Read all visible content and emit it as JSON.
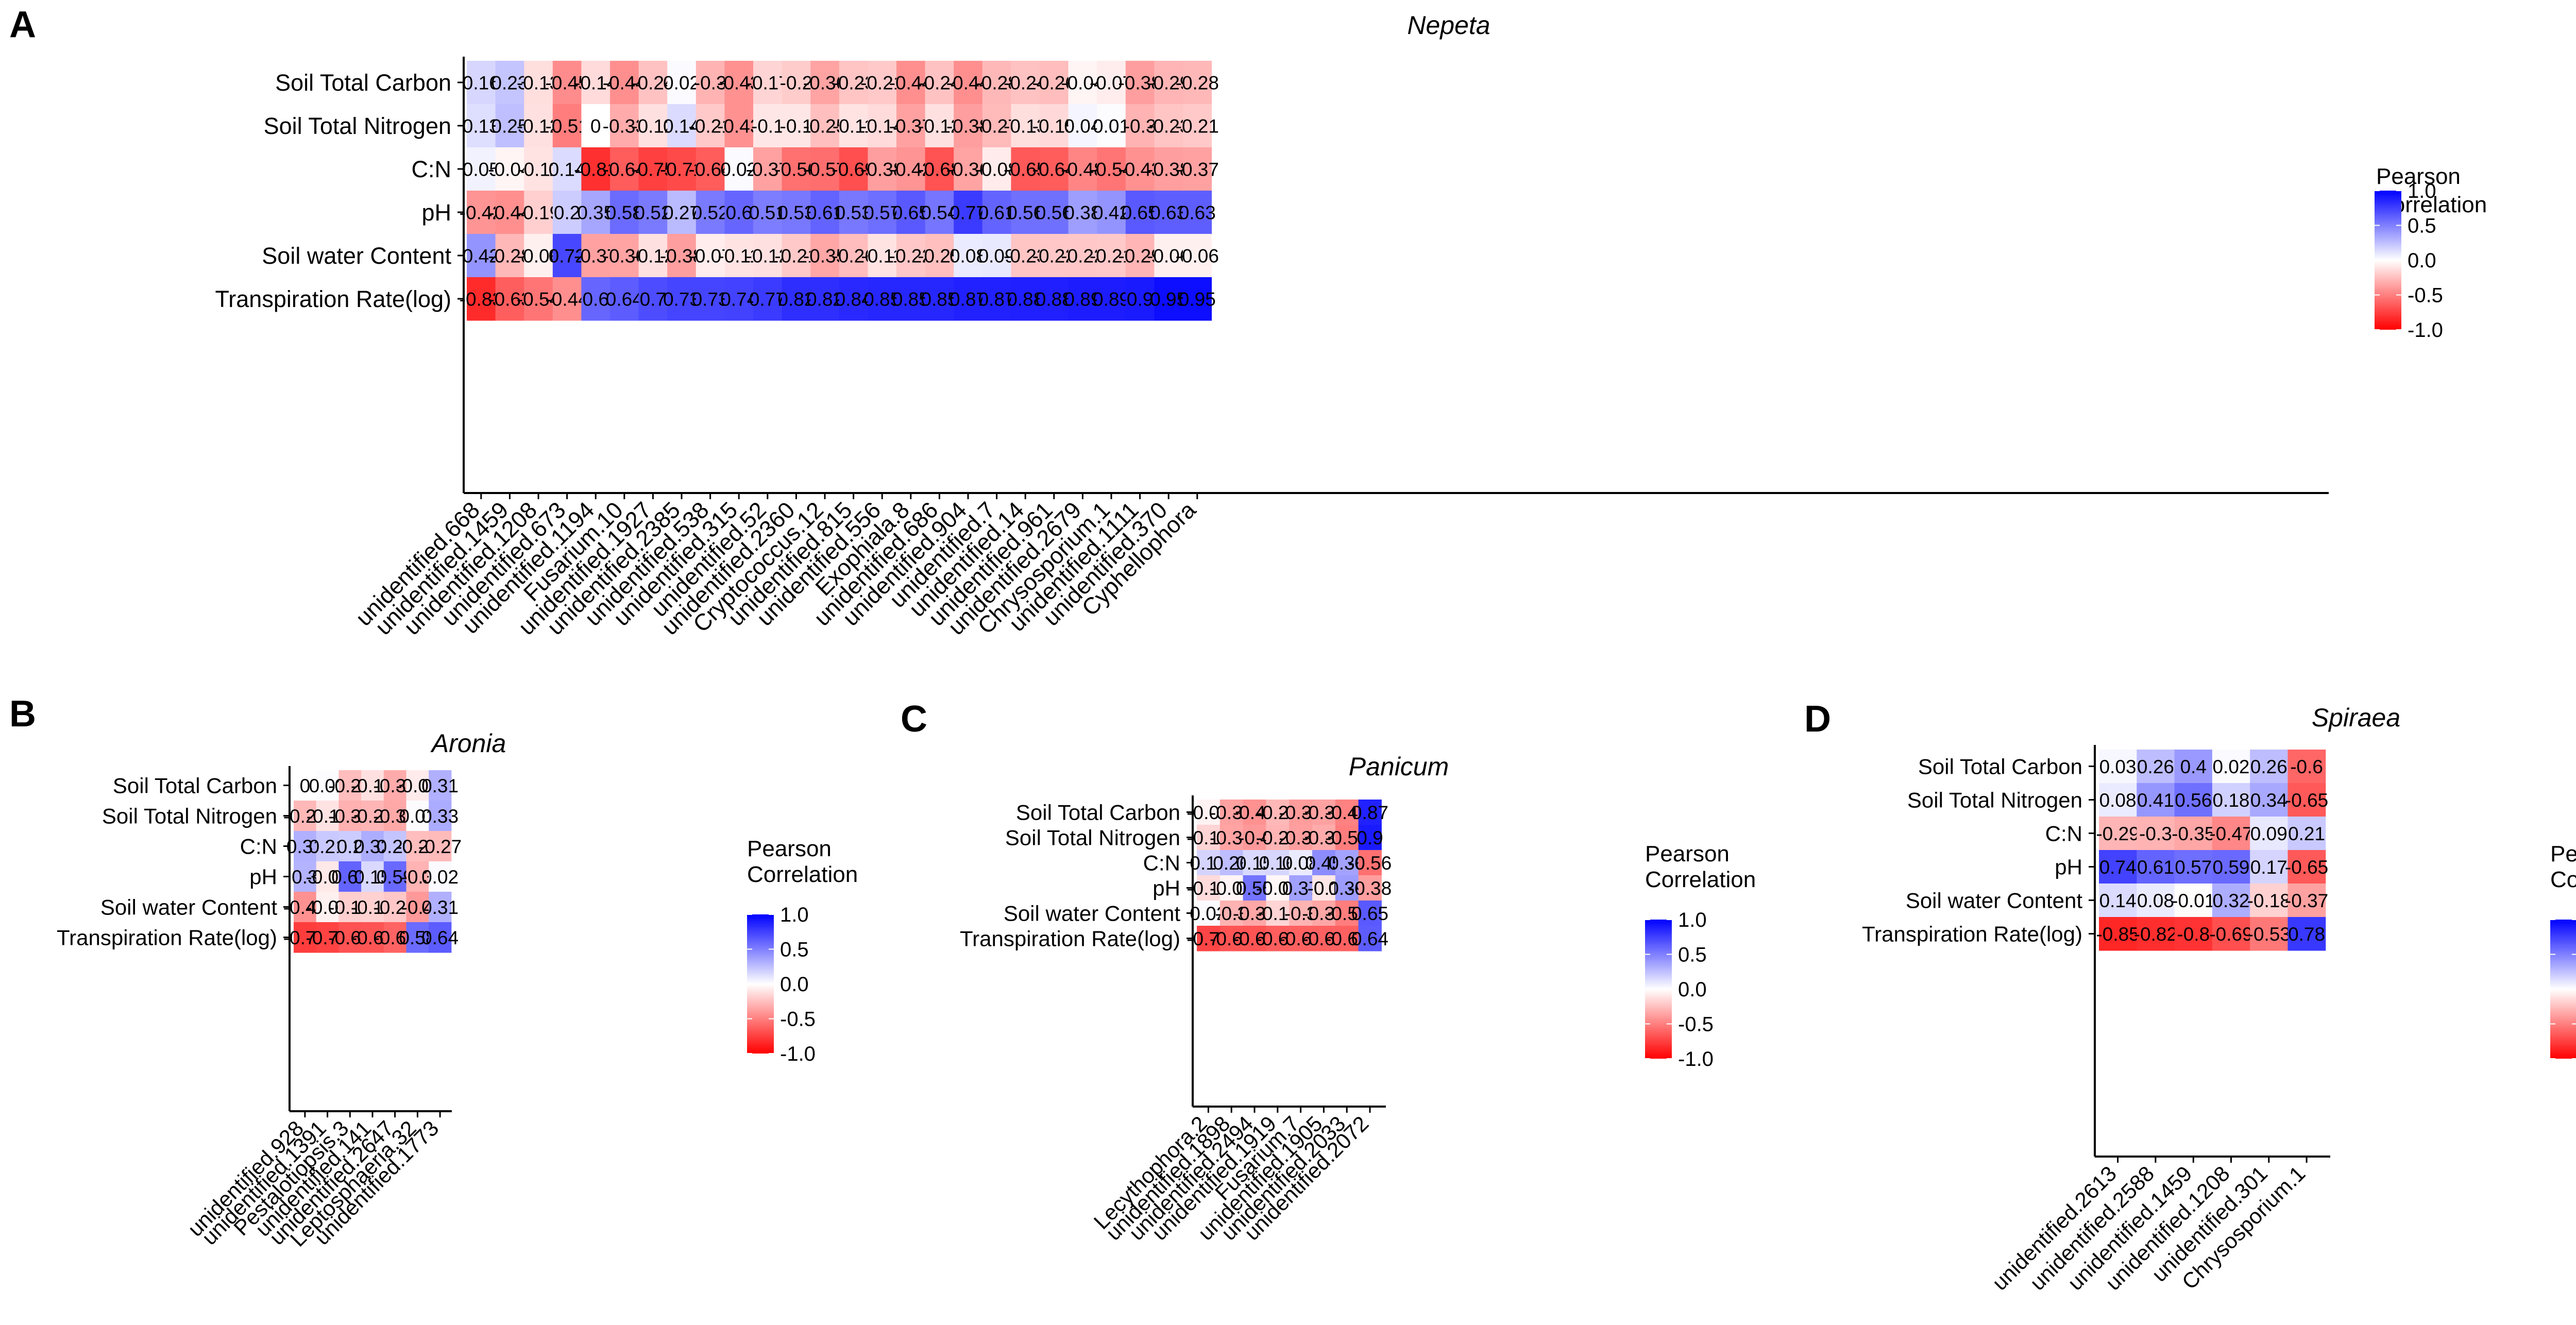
{
  "colors": {
    "neg": "#ff0000",
    "mid": "#ffffff",
    "pos": "#0000ff",
    "axis": "#000000",
    "text": "#000000"
  },
  "legend": {
    "title_line1": "Pearson",
    "title_line2": "Correlation",
    "ticks": [
      "1.0",
      "0.5",
      "0.0",
      "-0.5",
      "-1.0"
    ],
    "tick_values": [
      1.0,
      0.5,
      0.0,
      -0.5,
      -1.0
    ],
    "range": [
      -1.0,
      1.0
    ]
  },
  "chart_data": [
    {
      "panel_label": "A",
      "title": "Nepeta",
      "type": "heatmap",
      "rows": [
        "Soil Total Carbon",
        "Soil Total Nitrogen",
        "C:N",
        "pH",
        "Soil water Content",
        "Transpiration Rate(log)"
      ],
      "columns": [
        "unidentified.668",
        "unidentified.1459",
        "unidentified.1208",
        "unidentified.673",
        "unidentified.1194",
        "Fusarium.10",
        "unidentified.1927",
        "unidentified.2385",
        "unidentified.538",
        "unidentified.315",
        "unidentified.52",
        "unidentified.2360",
        "Cryptococcus.12",
        "unidentified.815",
        "unidentified.556",
        "Exophiala.8",
        "unidentified.686",
        "unidentified.904",
        "unidentified.7",
        "unidentified.14",
        "unidentified.961",
        "unidentified.2679",
        "Chrysosporium.1",
        "unidentified.1111",
        "unidentified.370",
        "Cyphellophora"
      ],
      "values": [
        [
          0.16,
          0.23,
          -0.13,
          -0.45,
          -0.14,
          -0.44,
          -0.24,
          0.02,
          -0.3,
          -0.43,
          -0.17,
          -0.2,
          -0.36,
          -0.23,
          -0.21,
          -0.44,
          -0.24,
          -0.44,
          -0.28,
          -0.24,
          -0.26,
          -0.04,
          -0.07,
          -0.38,
          -0.29,
          -0.28
        ],
        [
          0.13,
          0.25,
          -0.12,
          -0.51,
          0,
          -0.33,
          -0.12,
          0.14,
          -0.21,
          -0.43,
          -0.1,
          -0.1,
          -0.25,
          -0.11,
          -0.14,
          -0.37,
          -0.12,
          -0.38,
          -0.27,
          -0.13,
          -0.15,
          0.04,
          0.01,
          -0.3,
          -0.23,
          -0.21
        ],
        [
          0.05,
          -0.04,
          -0.11,
          0.14,
          -0.81,
          -0.64,
          -0.75,
          -0.71,
          -0.64,
          0.02,
          -0.37,
          -0.56,
          -0.57,
          -0.69,
          -0.38,
          -0.42,
          -0.68,
          -0.36,
          -0.08,
          -0.65,
          -0.64,
          -0.48,
          -0.54,
          -0.43,
          -0.38,
          -0.37
        ],
        [
          -0.42,
          -0.44,
          -0.19,
          0.2,
          0.35,
          0.58,
          0.52,
          0.27,
          0.52,
          0.6,
          0.51,
          0.53,
          0.61,
          0.53,
          0.57,
          0.65,
          0.54,
          0.77,
          0.61,
          0.56,
          0.56,
          0.38,
          0.42,
          0.65,
          0.63,
          0.63
        ],
        [
          0.42,
          -0.28,
          -0.06,
          0.72,
          -0.37,
          -0.36,
          -0.12,
          -0.38,
          -0.07,
          -0.11,
          -0.12,
          -0.21,
          -0.35,
          -0.26,
          -0.11,
          -0.22,
          -0.25,
          0.08,
          0.09,
          -0.23,
          -0.22,
          -0.22,
          -0.21,
          -0.29,
          -0.06,
          -0.06
        ],
        [
          -0.83,
          -0.63,
          -0.54,
          -0.44,
          0.6,
          0.64,
          0.7,
          0.73,
          0.73,
          0.74,
          0.77,
          0.82,
          0.82,
          0.84,
          0.85,
          0.85,
          0.85,
          0.87,
          0.87,
          0.88,
          0.88,
          0.89,
          0.89,
          0.9,
          0.95,
          0.95
        ]
      ]
    },
    {
      "panel_label": "B",
      "title": "Aronia",
      "type": "heatmap",
      "rows": [
        "Soil Total Carbon",
        "Soil Total Nitrogen",
        "C:N",
        "pH",
        "Soil water Content",
        "Transpiration Rate(log)"
      ],
      "columns": [
        "unidentified.928",
        "unidentified.1391",
        "Pestalotiopsis.3",
        "unidentified.141",
        "unidentified.2647",
        "Leptosphaeria.32",
        "unidentified.1773"
      ],
      "values": [
        [
          0,
          0.01,
          -0.26,
          -0.12,
          -0.33,
          -0.08,
          0.31
        ],
        [
          -0.28,
          -0.11,
          -0.31,
          -0.29,
          -0.34,
          0.01,
          0.33
        ],
        [
          0.31,
          0.21,
          0.2,
          0.32,
          0.23,
          -0.26,
          -0.27
        ],
        [
          0.3,
          -0.09,
          0.61,
          0.15,
          0.59,
          -0.3,
          0.02
        ],
        [
          -0.43,
          -0.06,
          -0.19,
          -0.18,
          -0.22,
          -0.4,
          0.31
        ],
        [
          -0.76,
          -0.74,
          -0.68,
          -0.67,
          -0.61,
          0.58,
          0.64
        ]
      ]
    },
    {
      "panel_label": "C",
      "title": "Panicum",
      "type": "heatmap",
      "rows": [
        "Soil Total Carbon",
        "Soil Total Nitrogen",
        "C:N",
        "pH",
        "Soil water Content",
        "Transpiration Rate(log)"
      ],
      "columns": [
        "Lecythophora.2",
        "unidentified.1898",
        "unidentified.2494",
        "unidentified.1919",
        "Fusarium.7",
        "unidentified.1905",
        "unidentified.2033",
        "unidentified.2072"
      ],
      "values": [
        [
          -0.05,
          -0.37,
          -0.43,
          -0.28,
          -0.39,
          -0.37,
          -0.49,
          0.87
        ],
        [
          -0.17,
          -0.36,
          -0.4,
          -0.29,
          -0.38,
          -0.33,
          -0.51,
          0.9
        ],
        [
          0.17,
          0.26,
          0.15,
          0.16,
          0.08,
          0.45,
          0.36,
          -0.56
        ],
        [
          -0.14,
          -0.04,
          0.55,
          -0.03,
          0.37,
          -0.1,
          0.39,
          -0.38
        ],
        [
          0.02,
          -0.3,
          -0.35,
          -0.17,
          -0.3,
          -0.35,
          -0.51,
          0.65
        ],
        [
          -0.73,
          -0.67,
          -0.67,
          -0.63,
          -0.62,
          -0.62,
          -0.62,
          0.64
        ]
      ]
    },
    {
      "panel_label": "D",
      "title": "Spiraea",
      "type": "heatmap",
      "rows": [
        "Soil Total Carbon",
        "Soil Total Nitrogen",
        "C:N",
        "pH",
        "Soil water Content",
        "Transpiration Rate(log)"
      ],
      "columns": [
        "unidentified.2613",
        "unidentified.2588",
        "unidentified.1459",
        "unidentified.1208",
        "unidentified.301",
        "Chrysosporium.1"
      ],
      "values": [
        [
          0.03,
          0.26,
          0.4,
          0.02,
          0.26,
          -0.6
        ],
        [
          0.08,
          0.41,
          0.56,
          0.18,
          0.34,
          -0.65
        ],
        [
          -0.29,
          -0.3,
          -0.35,
          -0.47,
          0.09,
          0.21
        ],
        [
          0.74,
          0.61,
          0.57,
          0.59,
          0.17,
          -0.65
        ],
        [
          0.14,
          0.08,
          -0.01,
          0.32,
          -0.18,
          -0.37
        ],
        [
          -0.85,
          -0.82,
          -0.8,
          -0.69,
          -0.53,
          0.78
        ]
      ]
    }
  ]
}
